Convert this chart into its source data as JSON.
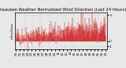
{
  "title": "Milwaukee Weather Normalized Wind Direction (Last 24 Hours)",
  "left_label": "miles/hour",
  "bg_color": "#e8e8e8",
  "plot_bg_color": "#e8e8e8",
  "line_color": "#cc0000",
  "grid_color": "#bbbbbb",
  "title_fontsize": 3.8,
  "tick_fontsize": 3.0,
  "label_fontsize": 3.0,
  "ylim": [
    -1.5,
    5.5
  ],
  "yticks": [
    5,
    0,
    -1
  ],
  "ytick_labels": [
    "5",
    "0",
    "-1"
  ],
  "n_points": 288,
  "seed": 42
}
